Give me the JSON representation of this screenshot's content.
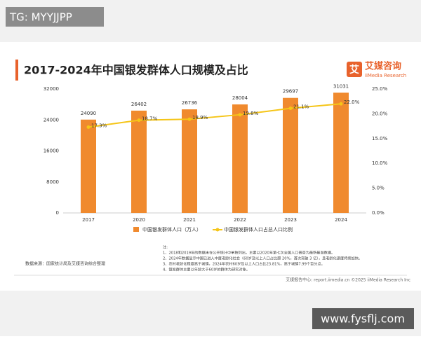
{
  "watermark_top": "TG: MYYJJPP",
  "logo": {
    "cn": "艾媒咨询",
    "en": "iiMedia Research",
    "mark": "艾"
  },
  "chart_data": {
    "type": "bar-line",
    "title": "2017-2024年中国银发群体人口规模及占比",
    "categories": [
      "2017",
      "2020",
      "2021",
      "2022",
      "2023",
      "2024"
    ],
    "series": [
      {
        "name": "中国银发群体人口（万人）",
        "color": "#f08a2e",
        "values": [
          24090,
          26402,
          26736,
          28004,
          29697,
          31031
        ]
      },
      {
        "name": "中国银发群体人口占总人口比例",
        "color": "#f5c518",
        "axis": "y2",
        "values": [
          17.3,
          18.7,
          18.9,
          19.8,
          21.1,
          22.0
        ],
        "value_labels": [
          "17.3%",
          "18.7%",
          "18.9%",
          "19.8%",
          "21.1%",
          "22.0%"
        ]
      }
    ],
    "ylim": [
      0,
      32000
    ],
    "yticks": [
      0,
      8000,
      16000,
      24000,
      32000
    ],
    "y2lim": [
      0,
      25
    ],
    "y2ticks": [
      {
        "value": 0,
        "label": "0.0%"
      },
      {
        "value": 5,
        "label": "5.0%"
      },
      {
        "value": 10,
        "label": "10.0%"
      },
      {
        "value": 15,
        "label": "15.0%"
      },
      {
        "value": 20,
        "label": "20.0%"
      },
      {
        "value": 25,
        "label": "25.0%"
      }
    ]
  },
  "notes": [
    "注:",
    "1、2018和2019年的数据未在公开统计中单独列出，主要以2020年第七次全国人口普查为最新基准数据。",
    "2、2024年数据显示中国已进入中度老龄化社会（60岁及以上人口占比超 20%，首次突破 3 亿），且老龄化速度持续加快。",
    "3、农村老龄化程度高于城镇，2024年农村60岁及以上人口占比23.81%，高于城镇7.99个百分点。",
    "4、银发群体主要以年龄大于60岁的群体为研究对象。"
  ],
  "source": "数据来源：国家统计局及艾媒咨询综合整理",
  "footer": "艾媒报告中心: report.iimedia.cn  ©2025  iiMedia Research Inc",
  "watermark_bottom": "www.fysflj.com"
}
